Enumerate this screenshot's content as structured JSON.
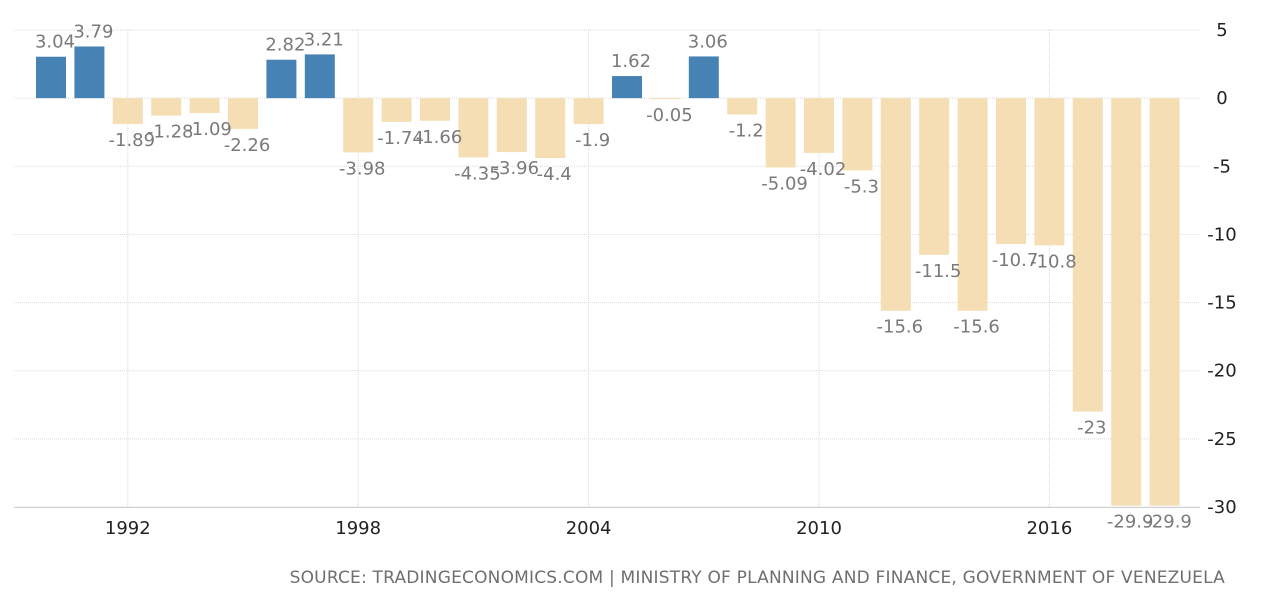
{
  "chart_data": {
    "type": "bar",
    "x": [
      1990,
      1991,
      1992,
      1993,
      1994,
      1995,
      1996,
      1997,
      1998,
      1999,
      2000,
      2001,
      2002,
      2003,
      2004,
      2005,
      2006,
      2007,
      2008,
      2009,
      2010,
      2011,
      2012,
      2013,
      2014,
      2015,
      2016,
      2017,
      2018,
      2019
    ],
    "values": [
      3.04,
      3.79,
      -1.89,
      -1.28,
      -1.09,
      -2.26,
      2.82,
      3.21,
      -3.98,
      -1.74,
      -1.66,
      -4.35,
      -3.96,
      -4.4,
      -1.9,
      1.62,
      -0.05,
      3.06,
      -1.2,
      -5.09,
      -4.02,
      -5.3,
      -15.6,
      -11.5,
      -15.6,
      -10.7,
      -10.8,
      -23,
      -29.9,
      -29.9
    ],
    "data_labels": [
      "3.04",
      "3.79",
      "-1.89",
      "-1.28",
      "-1.09",
      "-2.26",
      "2.82",
      "3.21",
      "-3.98",
      "-1.74",
      "-1.66",
      "-4.35",
      "-3.96",
      "-4.4",
      "-1.9",
      "1.62",
      "-0.05",
      "3.06",
      "-1.2",
      "-5.09",
      "-4.02",
      "-5.3",
      "-15.6",
      "-11.5",
      "-15.6",
      "-10.7",
      "-10.8",
      "-23",
      "-29.9",
      "-29.9"
    ],
    "x_ticks": [
      "1992",
      "1998",
      "2004",
      "2010",
      "2016"
    ],
    "y_ticks": [
      5,
      0,
      -5,
      -10,
      -15,
      -20,
      -25,
      -30
    ],
    "ylim": [
      -30,
      5
    ],
    "y_axis_side": "right",
    "grid": true,
    "colors": {
      "positive": "#4682b4",
      "negative": "#f5deb3",
      "label": "#7a7a7a",
      "tick": "#222222",
      "grid": "#d9d9d9"
    },
    "title": "",
    "xlabel": "",
    "ylabel": ""
  },
  "source": "SOURCE: TRADINGECONOMICS.COM | MINISTRY OF PLANNING AND FINANCE, GOVERNMENT OF VENEZUELA"
}
